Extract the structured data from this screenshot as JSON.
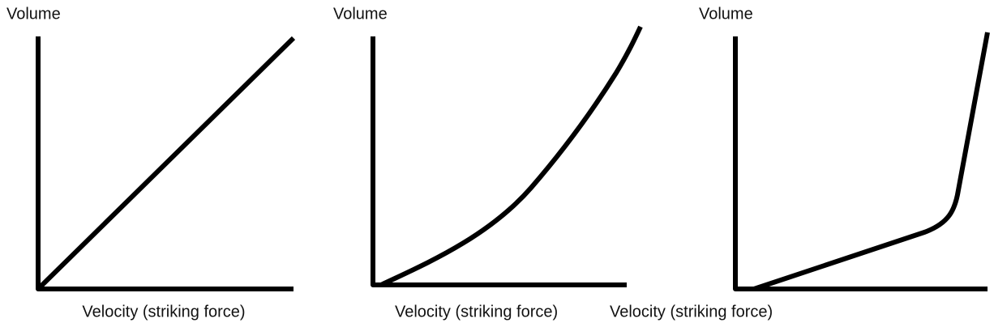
{
  "panels": [
    {
      "y_label": "Volume",
      "x_label": "Velocity (striking force)"
    },
    {
      "y_label": "Volume",
      "x_label": "Velocity (striking force)"
    },
    {
      "y_label": "Volume",
      "x_label": "Velocity (striking force)"
    }
  ]
}
